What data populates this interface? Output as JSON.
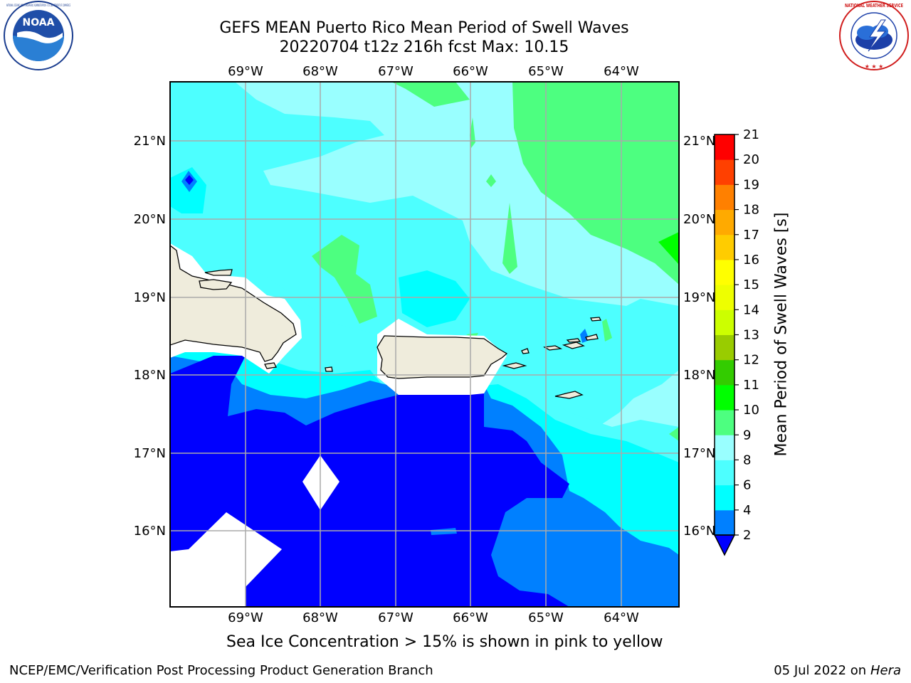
{
  "title": {
    "line1": "GEFS MEAN Puerto Rico Mean Period of Swell Waves",
    "line2": "20220704 t12z 216h fcst   Max: 10.15"
  },
  "map": {
    "lon_labels": [
      "69°W",
      "68°W",
      "67°W",
      "66°W",
      "65°W",
      "64°W"
    ],
    "lat_labels": [
      "21°N",
      "20°N",
      "19°N",
      "18°N",
      "17°N",
      "16°N"
    ],
    "lon_range": [
      -69.8,
      -63.3
    ],
    "lat_range": [
      15.0,
      21.75
    ],
    "islands": [
      "Hispaniola",
      "Puerto Rico",
      "Virgin Islands",
      "St. Croix"
    ]
  },
  "colorbar": {
    "label": "Mean Period of Swell Waves [s]",
    "ticks": [
      "2",
      "4",
      "6",
      "8",
      "9",
      "10",
      "11",
      "12",
      "13",
      "14",
      "15",
      "16",
      "17",
      "18",
      "19",
      "20",
      "21"
    ],
    "colors": [
      "#0000ff",
      "#0080ff",
      "#00ffff",
      "#4dffff",
      "#99ffff",
      "#4dff80",
      "#00ff00",
      "#33cc00",
      "#99cc00",
      "#ccff00",
      "#eeff00",
      "#ffff00",
      "#ffcc00",
      "#ffaa00",
      "#ff8000",
      "#ff4000",
      "#ff0000"
    ]
  },
  "palette": {
    "water_land_mask": "#ffffff",
    "land": "#efecdc",
    "grid": "#aaaaaa"
  },
  "note": "Sea Ice Concentration > 15% is shown in pink to yellow",
  "footer": {
    "left": "NCEP/EMC/Verification Post Processing Product Generation Branch",
    "date": "05 Jul 2022 on",
    "machine": "Hera"
  },
  "logos": {
    "noaa_text": "NOAA",
    "noaa_ring": "NATIONAL OCEANIC AND ATMOSPHERIC ADMINISTRATION · U.S. DEPARTMENT OF COMMERCE",
    "nws_ring": "NATIONAL WEATHER SERVICE"
  }
}
